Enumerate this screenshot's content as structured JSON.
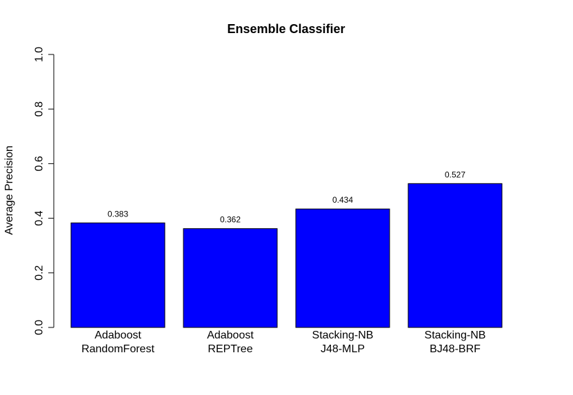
{
  "chart_data": {
    "type": "bar",
    "title": "Ensemble Classifier",
    "xlabel": "",
    "ylabel": "Average Precision",
    "ylim": [
      0,
      1
    ],
    "yticks": [
      "0.0",
      "0.2",
      "0.4",
      "0.6",
      "0.8",
      "1.0"
    ],
    "categories": [
      [
        "Adaboost",
        "RandomForest"
      ],
      [
        "Adaboost",
        "REPTree"
      ],
      [
        "Stacking-NB",
        "J48-MLP"
      ],
      [
        "Stacking-NB",
        "BJ48-BRF"
      ]
    ],
    "values": [
      0.383,
      0.362,
      0.434,
      0.527
    ],
    "data_labels": [
      "0.383",
      "0.362",
      "0.434",
      "0.527"
    ],
    "bar_color": "#0000ff",
    "bar_border": "#000000",
    "grid": false,
    "legend": "none"
  }
}
